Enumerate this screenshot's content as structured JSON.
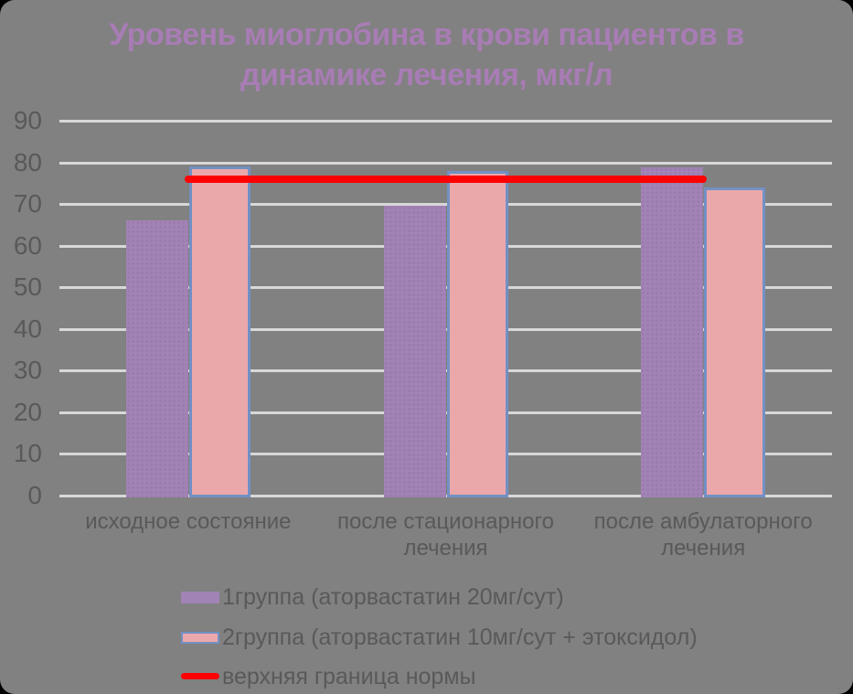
{
  "frame": {
    "outside_color": "#000000",
    "background": "#818181",
    "axis_text_color": "#595959",
    "gridline_color": "#d8d8d8"
  },
  "chart_data": {
    "type": "bar",
    "title": "Уровень миоглобина в крови пациентов в динамике лечения, мкг/л",
    "title_lines": [
      "Уровень миоглобина в крови пациентов в",
      "динамике лечения, мкг/л"
    ],
    "title_color": "#a87cb4",
    "categories": [
      "исходное состояние",
      "после стационарного лечения",
      "после амбулаторного лечения"
    ],
    "category_lines": [
      [
        "исходное состояние"
      ],
      [
        "после стационарного",
        "лечения"
      ],
      [
        "после амбулаторного",
        "лечения"
      ]
    ],
    "series": [
      {
        "name": "1группа (аторвастатин 20мг/сут)",
        "color": "#a283b5",
        "values": [
          66,
          69.5,
          78.8
        ]
      },
      {
        "name": "2группа (аторвастатин 10мг/сут + этоксидол)",
        "color": "#eba8aa",
        "border_color": "#7290c4",
        "values": [
          79,
          78,
          74
        ]
      }
    ],
    "norm_line": {
      "label": "верхняя граница нормы",
      "value": 76,
      "color": "#ff0000"
    },
    "ylabel": "",
    "xlabel": "",
    "ylim": [
      0,
      90
    ],
    "yticks": [
      0,
      10,
      20,
      30,
      40,
      50,
      60,
      70,
      80,
      90
    ],
    "grid": true,
    "legend_position": "bottom-left"
  }
}
